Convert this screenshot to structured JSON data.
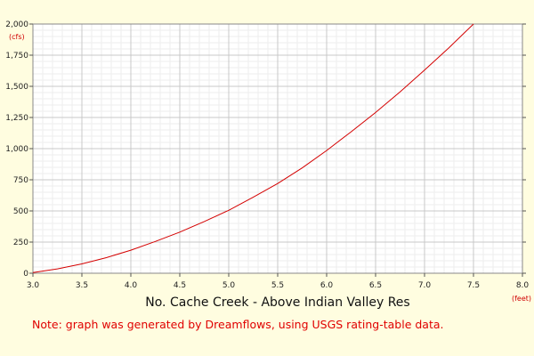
{
  "chart_data": {
    "type": "line",
    "title": "No. Cache Creek - Above Indian Valley Res",
    "note": "Note: graph was generated by Dreamflows, using USGS rating-table data.",
    "xlabel": "(feet)",
    "ylabel": "(cfs)",
    "xlim": [
      3.0,
      8.0
    ],
    "ylim": [
      0,
      2000
    ],
    "x_ticks": [
      "3.0",
      "3.5",
      "4.0",
      "4.5",
      "5.0",
      "5.5",
      "6.0",
      "6.5",
      "7.0",
      "7.5",
      "8.0"
    ],
    "y_ticks": [
      "0",
      "250",
      "500",
      "750",
      "1,000",
      "1,250",
      "1,500",
      "1,750",
      "2,000"
    ],
    "grid": true,
    "series": [
      {
        "x": [
          3.0,
          3.25,
          3.5,
          3.75,
          4.0,
          4.25,
          4.5,
          4.75,
          5.0,
          5.25,
          5.5,
          5.75,
          6.0,
          6.25,
          6.5,
          6.75,
          7.0,
          7.25,
          7.5
        ],
        "y": [
          5,
          35,
          75,
          125,
          185,
          255,
          330,
          415,
          505,
          610,
          720,
          845,
          985,
          1135,
          1290,
          1455,
          1630,
          1810,
          2000
        ],
        "color": "#d40000"
      }
    ]
  }
}
